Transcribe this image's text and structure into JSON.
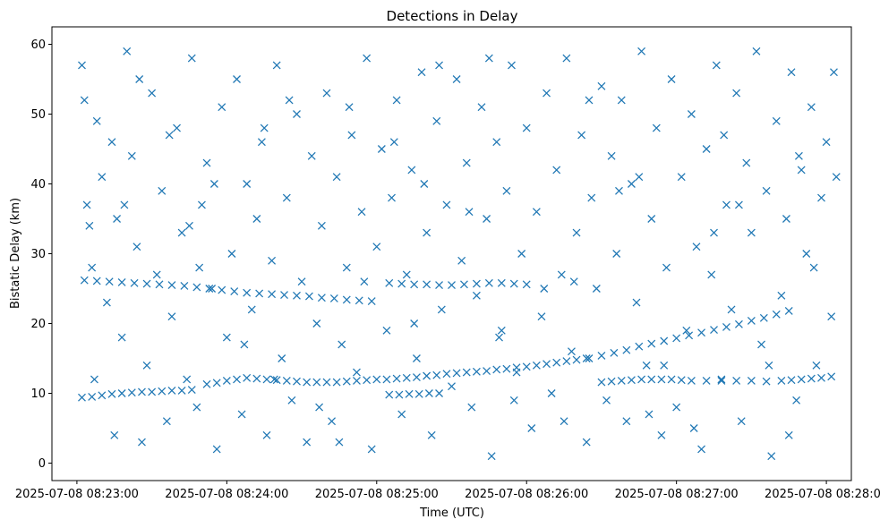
{
  "chart_data": {
    "type": "scatter",
    "title": "Detections in Delay",
    "xlabel": "Time (UTC)",
    "ylabel": "Bistatic Delay (km)",
    "x_ticks": [
      "2025-07-08 08:23:00",
      "2025-07-08 08:24:00",
      "2025-07-08 08:25:00",
      "2025-07-08 08:26:00",
      "2025-07-08 08:27:00",
      "2025-07-08 08:28:00"
    ],
    "x_tick_seconds": [
      0,
      60,
      120,
      180,
      240,
      300
    ],
    "xlim_seconds": [
      -10,
      310
    ],
    "y_ticks": [
      0,
      10,
      20,
      30,
      40,
      50,
      60
    ],
    "ylim": [
      -2.5,
      62.5
    ],
    "marker": "x",
    "color": "#1f77b4",
    "grid": false,
    "legend": "none",
    "series": [
      {
        "track": "upper-descending",
        "points": [
          [
            3,
            26.2
          ],
          [
            8,
            26.1
          ],
          [
            13,
            26.0
          ],
          [
            18,
            25.9
          ],
          [
            23,
            25.8
          ],
          [
            28,
            25.7
          ],
          [
            33,
            25.6
          ],
          [
            38,
            25.5
          ],
          [
            43,
            25.4
          ],
          [
            48,
            25.2
          ],
          [
            53,
            25.0
          ],
          [
            58,
            24.8
          ],
          [
            63,
            24.6
          ],
          [
            68,
            24.4
          ],
          [
            73,
            24.3
          ],
          [
            78,
            24.2
          ],
          [
            83,
            24.1
          ],
          [
            88,
            24.0
          ],
          [
            93,
            23.9
          ],
          [
            98,
            23.7
          ],
          [
            103,
            23.6
          ],
          [
            108,
            23.4
          ],
          [
            113,
            23.3
          ],
          [
            118,
            23.2
          ],
          [
            125,
            25.8
          ],
          [
            130,
            25.7
          ],
          [
            135,
            25.6
          ],
          [
            140,
            25.6
          ],
          [
            145,
            25.5
          ],
          [
            150,
            25.5
          ],
          [
            155,
            25.6
          ],
          [
            160,
            25.7
          ],
          [
            165,
            25.8
          ],
          [
            170,
            25.8
          ],
          [
            175,
            25.7
          ],
          [
            180,
            25.6
          ]
        ]
      },
      {
        "track": "lower-main",
        "points": [
          [
            2,
            9.4
          ],
          [
            6,
            9.5
          ],
          [
            10,
            9.7
          ],
          [
            14,
            9.9
          ],
          [
            18,
            10.0
          ],
          [
            22,
            10.1
          ],
          [
            26,
            10.2
          ],
          [
            30,
            10.2
          ],
          [
            34,
            10.3
          ],
          [
            38,
            10.4
          ],
          [
            42,
            10.4
          ],
          [
            46,
            10.5
          ],
          [
            52,
            11.3
          ],
          [
            56,
            11.5
          ],
          [
            60,
            11.8
          ],
          [
            64,
            12.0
          ],
          [
            68,
            12.2
          ],
          [
            72,
            12.1
          ],
          [
            76,
            12.0
          ],
          [
            80,
            11.9
          ],
          [
            84,
            11.8
          ],
          [
            88,
            11.7
          ],
          [
            92,
            11.6
          ],
          [
            96,
            11.6
          ],
          [
            100,
            11.6
          ],
          [
            104,
            11.6
          ],
          [
            108,
            11.7
          ],
          [
            112,
            11.8
          ],
          [
            116,
            11.9
          ],
          [
            120,
            12.0
          ],
          [
            124,
            12.0
          ],
          [
            128,
            12.1
          ],
          [
            132,
            12.2
          ],
          [
            136,
            12.3
          ],
          [
            140,
            12.5
          ],
          [
            144,
            12.6
          ],
          [
            148,
            12.8
          ],
          [
            152,
            12.9
          ],
          [
            156,
            13.0
          ],
          [
            160,
            13.1
          ],
          [
            164,
            13.2
          ],
          [
            168,
            13.4
          ],
          [
            172,
            13.5
          ],
          [
            176,
            13.7
          ],
          [
            180,
            13.8
          ],
          [
            184,
            14.0
          ],
          [
            188,
            14.2
          ],
          [
            192,
            14.4
          ],
          [
            196,
            14.6
          ],
          [
            200,
            14.8
          ],
          [
            204,
            15.0
          ]
        ]
      },
      {
        "track": "lower-secondary",
        "points": [
          [
            125,
            9.8
          ],
          [
            129,
            9.8
          ],
          [
            133,
            9.9
          ],
          [
            137,
            9.9
          ],
          [
            141,
            10.0
          ],
          [
            145,
            10.0
          ],
          [
            210,
            11.6
          ],
          [
            214,
            11.7
          ],
          [
            218,
            11.8
          ],
          [
            222,
            11.9
          ],
          [
            226,
            12.0
          ],
          [
            230,
            12.0
          ],
          [
            234,
            12.0
          ],
          [
            238,
            12.0
          ],
          [
            242,
            11.9
          ],
          [
            246,
            11.8
          ],
          [
            252,
            11.8
          ],
          [
            258,
            11.8
          ],
          [
            264,
            11.8
          ],
          [
            270,
            11.8
          ],
          [
            276,
            11.7
          ],
          [
            282,
            11.8
          ],
          [
            286,
            11.9
          ],
          [
            290,
            12.0
          ],
          [
            294,
            12.1
          ],
          [
            298,
            12.2
          ],
          [
            302,
            12.4
          ]
        ]
      },
      {
        "track": "rising",
        "points": [
          [
            205,
            15.0
          ],
          [
            210,
            15.4
          ],
          [
            215,
            15.8
          ],
          [
            220,
            16.2
          ],
          [
            225,
            16.7
          ],
          [
            230,
            17.1
          ],
          [
            235,
            17.5
          ],
          [
            240,
            17.9
          ],
          [
            245,
            18.3
          ],
          [
            250,
            18.7
          ],
          [
            255,
            19.1
          ],
          [
            260,
            19.5
          ],
          [
            265,
            19.9
          ],
          [
            270,
            20.4
          ],
          [
            275,
            20.8
          ],
          [
            280,
            21.3
          ],
          [
            285,
            21.8
          ]
        ]
      },
      {
        "track": "clutter",
        "points": [
          [
            2,
            57
          ],
          [
            3,
            52
          ],
          [
            4,
            37
          ],
          [
            5,
            34
          ],
          [
            6,
            28
          ],
          [
            8,
            49
          ],
          [
            10,
            41
          ],
          [
            12,
            23
          ],
          [
            14,
            46
          ],
          [
            16,
            35
          ],
          [
            18,
            18
          ],
          [
            20,
            59
          ],
          [
            22,
            44
          ],
          [
            24,
            31
          ],
          [
            26,
            3
          ],
          [
            28,
            14
          ],
          [
            30,
            53
          ],
          [
            32,
            27
          ],
          [
            34,
            39
          ],
          [
            36,
            6
          ],
          [
            38,
            21
          ],
          [
            40,
            48
          ],
          [
            42,
            33
          ],
          [
            44,
            12
          ],
          [
            46,
            58
          ],
          [
            48,
            8
          ],
          [
            50,
            37
          ],
          [
            52,
            43
          ],
          [
            54,
            25
          ],
          [
            56,
            2
          ],
          [
            58,
            51
          ],
          [
            60,
            18
          ],
          [
            62,
            30
          ],
          [
            64,
            55
          ],
          [
            66,
            7
          ],
          [
            68,
            40
          ],
          [
            70,
            22
          ],
          [
            72,
            35
          ],
          [
            74,
            46
          ],
          [
            76,
            4
          ],
          [
            78,
            29
          ],
          [
            80,
            57
          ],
          [
            82,
            15
          ],
          [
            84,
            38
          ],
          [
            86,
            9
          ],
          [
            88,
            50
          ],
          [
            90,
            26
          ],
          [
            92,
            3
          ],
          [
            94,
            44
          ],
          [
            96,
            20
          ],
          [
            98,
            34
          ],
          [
            100,
            53
          ],
          [
            102,
            6
          ],
          [
            104,
            41
          ],
          [
            106,
            17
          ],
          [
            108,
            28
          ],
          [
            110,
            47
          ],
          [
            112,
            13
          ],
          [
            114,
            36
          ],
          [
            116,
            58
          ],
          [
            118,
            2
          ],
          [
            120,
            31
          ],
          [
            122,
            45
          ],
          [
            124,
            19
          ],
          [
            126,
            38
          ],
          [
            128,
            52
          ],
          [
            130,
            7
          ],
          [
            132,
            27
          ],
          [
            134,
            42
          ],
          [
            136,
            15
          ],
          [
            138,
            56
          ],
          [
            140,
            33
          ],
          [
            142,
            4
          ],
          [
            144,
            49
          ],
          [
            146,
            22
          ],
          [
            148,
            37
          ],
          [
            150,
            11
          ],
          [
            152,
            55
          ],
          [
            154,
            29
          ],
          [
            156,
            43
          ],
          [
            158,
            8
          ],
          [
            160,
            24
          ],
          [
            162,
            51
          ],
          [
            164,
            35
          ],
          [
            166,
            1
          ],
          [
            168,
            46
          ],
          [
            170,
            19
          ],
          [
            172,
            39
          ],
          [
            174,
            57
          ],
          [
            176,
            13
          ],
          [
            178,
            30
          ],
          [
            180,
            48
          ],
          [
            182,
            5
          ],
          [
            184,
            36
          ],
          [
            186,
            21
          ],
          [
            188,
            53
          ],
          [
            190,
            10
          ],
          [
            192,
            42
          ],
          [
            194,
            27
          ],
          [
            196,
            58
          ],
          [
            198,
            16
          ],
          [
            200,
            33
          ],
          [
            202,
            47
          ],
          [
            204,
            3
          ],
          [
            206,
            38
          ],
          [
            208,
            25
          ],
          [
            210,
            54
          ],
          [
            212,
            9
          ],
          [
            214,
            44
          ],
          [
            216,
            30
          ],
          [
            218,
            52
          ],
          [
            220,
            6
          ],
          [
            222,
            40
          ],
          [
            224,
            23
          ],
          [
            226,
            59
          ],
          [
            228,
            14
          ],
          [
            230,
            35
          ],
          [
            232,
            48
          ],
          [
            234,
            4
          ],
          [
            236,
            28
          ],
          [
            238,
            55
          ],
          [
            240,
            8
          ],
          [
            242,
            41
          ],
          [
            244,
            19
          ],
          [
            246,
            50
          ],
          [
            248,
            31
          ],
          [
            250,
            2
          ],
          [
            252,
            45
          ],
          [
            254,
            27
          ],
          [
            256,
            57
          ],
          [
            258,
            12
          ],
          [
            260,
            37
          ],
          [
            262,
            22
          ],
          [
            264,
            53
          ],
          [
            266,
            6
          ],
          [
            268,
            43
          ],
          [
            270,
            33
          ],
          [
            272,
            59
          ],
          [
            274,
            17
          ],
          [
            276,
            39
          ],
          [
            278,
            1
          ],
          [
            280,
            49
          ],
          [
            282,
            24
          ],
          [
            284,
            35
          ],
          [
            286,
            56
          ],
          [
            288,
            9
          ],
          [
            290,
            42
          ],
          [
            292,
            30
          ],
          [
            294,
            51
          ],
          [
            296,
            14
          ],
          [
            298,
            38
          ],
          [
            300,
            46
          ],
          [
            302,
            21
          ],
          [
            303,
            56
          ],
          [
            304,
            41
          ],
          [
            15,
            4
          ],
          [
            45,
            34
          ],
          [
            75,
            48
          ],
          [
            105,
            3
          ],
          [
            135,
            20
          ],
          [
            165,
            58
          ],
          [
            195,
            6
          ],
          [
            225,
            41
          ],
          [
            255,
            33
          ],
          [
            285,
            4
          ],
          [
            25,
            55
          ],
          [
            55,
            40
          ],
          [
            85,
            52
          ],
          [
            115,
            26
          ],
          [
            145,
            57
          ],
          [
            175,
            9
          ],
          [
            205,
            52
          ],
          [
            235,
            14
          ],
          [
            265,
            37
          ],
          [
            295,
            28
          ],
          [
            7,
            12
          ],
          [
            37,
            47
          ],
          [
            67,
            17
          ],
          [
            97,
            8
          ],
          [
            127,
            46
          ],
          [
            157,
            36
          ],
          [
            187,
            25
          ],
          [
            217,
            39
          ],
          [
            247,
            5
          ],
          [
            277,
            14
          ],
          [
            19,
            37
          ],
          [
            49,
            28
          ],
          [
            79,
            12
          ],
          [
            109,
            51
          ],
          [
            139,
            40
          ],
          [
            169,
            18
          ],
          [
            199,
            26
          ],
          [
            229,
            7
          ],
          [
            259,
            47
          ],
          [
            289,
            44
          ]
        ]
      }
    ]
  }
}
